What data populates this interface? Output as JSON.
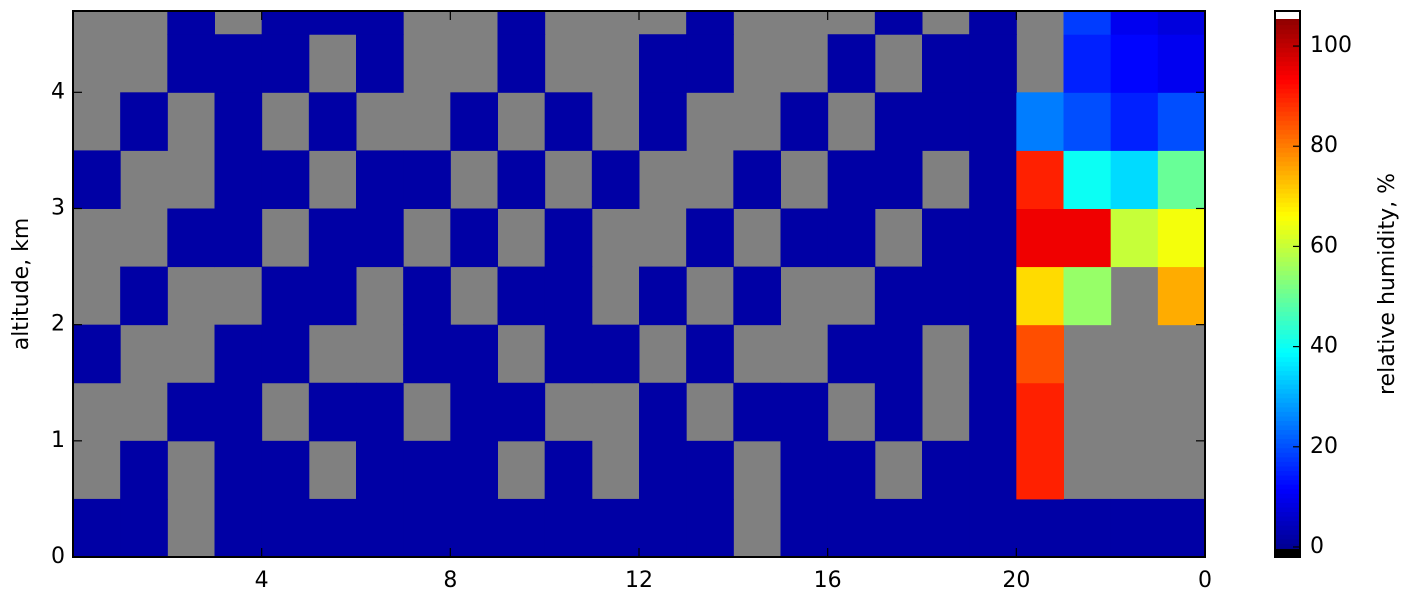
{
  "chart_data": {
    "type": "heatmap",
    "xlabel": null,
    "ylabel": "altitude, km",
    "colorbar_label": "relative humidity, %",
    "colormap": "jet",
    "missing_color": "#808080",
    "xlim": [
      0,
      24
    ],
    "xticks": [
      4,
      8,
      12,
      16,
      20,
      {
        "value": 24,
        "label": "0"
      }
    ],
    "ylim": [
      0,
      4.7
    ],
    "yticks": [
      0,
      1,
      2,
      3,
      4
    ],
    "clim": [
      -2,
      107
    ],
    "cticks": [
      0,
      20,
      40,
      60,
      80,
      100
    ],
    "x_edges": [
      0,
      1,
      2,
      3,
      4,
      5,
      6,
      7,
      8,
      9,
      10,
      11,
      12,
      13,
      14,
      15,
      16,
      17,
      18,
      19,
      20,
      21,
      22,
      23,
      24
    ],
    "y_edges": [
      0,
      0.5,
      1,
      1.5,
      2,
      2.5,
      3,
      3.5,
      4,
      4.5,
      4.7
    ],
    "z": [
      [
        2,
        2,
        null,
        2,
        2,
        2,
        2,
        2,
        2,
        2,
        2,
        2,
        2,
        2,
        null,
        2,
        2,
        2,
        2,
        2,
        2,
        2,
        2,
        2
      ],
      [
        null,
        2,
        null,
        2,
        2,
        null,
        2,
        2,
        2,
        null,
        2,
        null,
        2,
        2,
        null,
        2,
        2,
        null,
        2,
        2,
        90,
        null,
        null,
        null
      ],
      [
        null,
        null,
        2,
        2,
        null,
        2,
        2,
        null,
        2,
        2,
        null,
        null,
        2,
        null,
        2,
        2,
        null,
        2,
        null,
        2,
        90,
        null,
        null,
        null
      ],
      [
        2,
        null,
        null,
        2,
        2,
        null,
        null,
        2,
        2,
        null,
        2,
        2,
        null,
        2,
        null,
        null,
        2,
        2,
        null,
        2,
        85,
        null,
        null,
        null
      ],
      [
        null,
        2,
        null,
        null,
        2,
        2,
        null,
        2,
        null,
        2,
        2,
        null,
        2,
        null,
        2,
        null,
        null,
        2,
        2,
        2,
        70,
        55,
        null,
        75
      ],
      [
        null,
        null,
        2,
        2,
        null,
        2,
        2,
        null,
        2,
        null,
        2,
        null,
        null,
        2,
        null,
        2,
        2,
        null,
        2,
        2,
        95,
        95,
        60,
        65
      ],
      [
        2,
        null,
        null,
        2,
        2,
        null,
        2,
        2,
        null,
        2,
        null,
        2,
        null,
        null,
        2,
        null,
        2,
        2,
        null,
        2,
        90,
        40,
        35,
        50
      ],
      [
        null,
        2,
        null,
        2,
        null,
        2,
        null,
        null,
        2,
        null,
        2,
        null,
        2,
        null,
        null,
        2,
        null,
        2,
        2,
        2,
        25,
        20,
        15,
        20
      ],
      [
        null,
        null,
        2,
        2,
        2,
        null,
        2,
        null,
        null,
        2,
        null,
        null,
        2,
        2,
        null,
        null,
        2,
        null,
        2,
        2,
        null,
        15,
        12,
        10
      ],
      [
        null,
        null,
        2,
        null,
        2,
        2,
        2,
        null,
        null,
        2,
        null,
        null,
        null,
        2,
        null,
        null,
        null,
        2,
        null,
        2,
        null,
        18,
        10,
        8
      ]
    ]
  }
}
